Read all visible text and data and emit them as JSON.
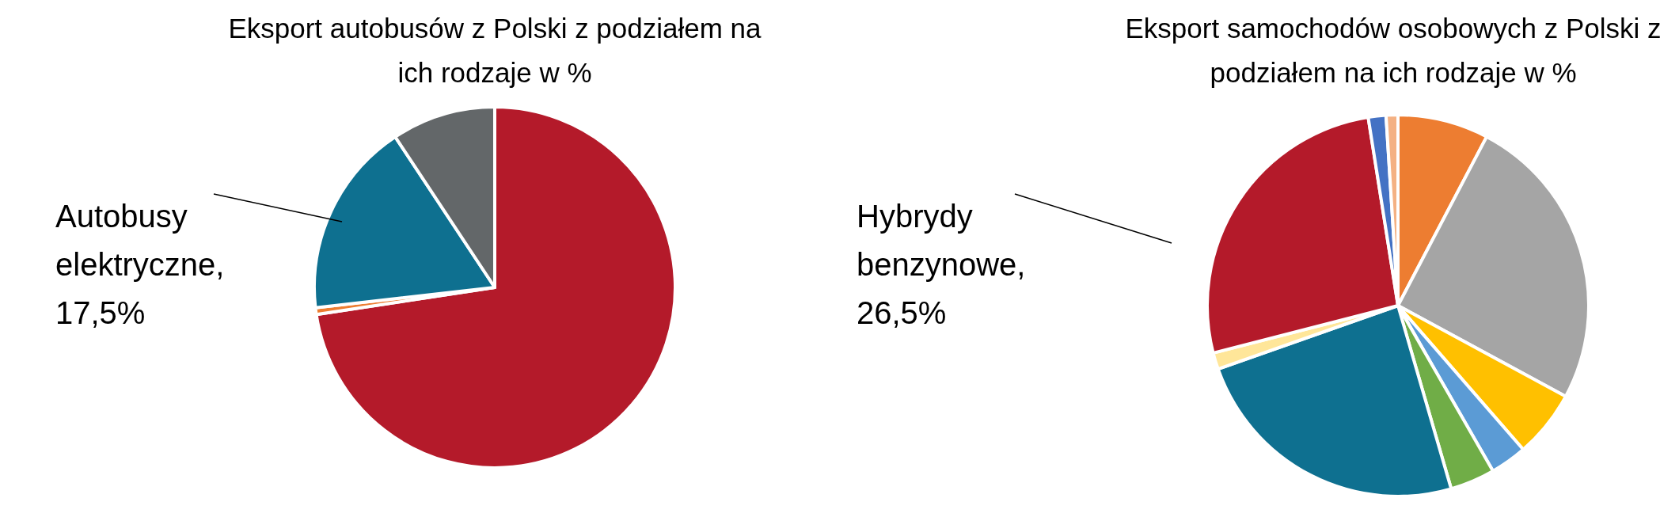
{
  "chart_data": [
    {
      "type": "pie",
      "title": "Eksport autobusów z Polski z podziałem na ich rodzaje w %",
      "categories": [
        null,
        null,
        null,
        null
      ],
      "values": [
        72.6,
        0.6,
        17.5,
        9.3
      ],
      "colors": [
        "#b41a2a",
        "#ed7d31",
        "#0e7090",
        "#636769"
      ],
      "annotations": [
        "Autobusy elektryczne, 17,5%"
      ]
    },
    {
      "type": "pie",
      "title": "Eksport samochodów osobowych z Polski z podziałem na ich rodzaje w %",
      "categories": [
        null,
        null,
        null,
        null,
        null,
        null,
        null,
        null,
        null,
        null
      ],
      "values": [
        7.7,
        25.2,
        5.7,
        3.1,
        3.8,
        24.1,
        1.4,
        26.5,
        1.5,
        1.0
      ],
      "colors": [
        "#ed7d31",
        "#a5a5a5",
        "#ffc000",
        "#5b9bd5",
        "#70ad47",
        "#0e7090",
        "#ffe699",
        "#b41a2a",
        "#4472c4",
        "#f4b183"
      ],
      "annotations": [
        "Hybrydy benzynowe, 26,5%"
      ]
    }
  ]
}
